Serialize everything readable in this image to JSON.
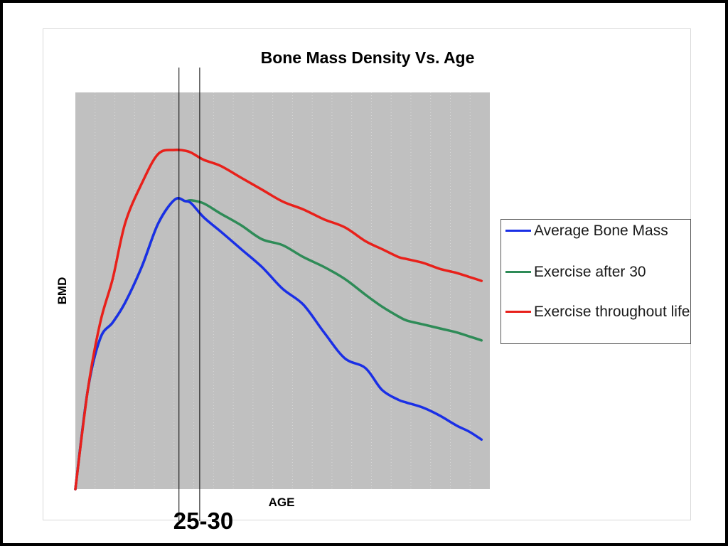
{
  "chart_data": {
    "type": "line",
    "title": "Bone Mass Density Vs. Age",
    "xlabel": "AGE",
    "ylabel": "BMD",
    "x_ticks_shown": false,
    "y_ticks_shown": false,
    "xlim": [
      0,
      100
    ],
    "ylim": [
      0,
      100
    ],
    "grid": "vertical dotted",
    "plot_background": "#c0c0c0",
    "legend_position": "right",
    "series": [
      {
        "name": "Average Bone Mass",
        "color": "#1a2fe6",
        "x": [
          0,
          3,
          6,
          9,
          12,
          16,
          20,
          24,
          26.5,
          28,
          31,
          35,
          40,
          45,
          50,
          55,
          60,
          65,
          70,
          74,
          78,
          80,
          84,
          88,
          92,
          95,
          98
        ],
        "y": [
          0,
          25,
          38,
          42,
          47,
          56,
          67,
          73,
          72.6,
          72,
          68.5,
          65,
          60.5,
          56,
          50.5,
          46.5,
          39.5,
          33,
          30.5,
          25,
          22.5,
          21.8,
          20.5,
          18.5,
          16,
          14.5,
          12.5
        ]
      },
      {
        "name": "Exercise after 30",
        "color": "#2e8b57",
        "x": [
          0,
          3,
          6,
          9,
          12,
          16,
          20,
          24,
          26.5,
          28,
          31,
          35,
          40,
          45,
          50,
          55,
          60,
          65,
          70,
          74,
          78,
          80,
          84,
          88,
          92,
          95,
          98
        ],
        "y": [
          0,
          25,
          38,
          42,
          47,
          56,
          67,
          73,
          72.6,
          72.8,
          72,
          69.5,
          66.5,
          63,
          61.5,
          58.5,
          56,
          53,
          49,
          46,
          43.5,
          42.5,
          41.5,
          40.5,
          39.5,
          38.5,
          37.5
        ]
      },
      {
        "name": "Exercise throughout life",
        "color": "#e8201a",
        "x": [
          0,
          3,
          6,
          9,
          12,
          16,
          20,
          24,
          26.5,
          28,
          31,
          35,
          40,
          45,
          50,
          55,
          60,
          65,
          70,
          74,
          78,
          80,
          84,
          88,
          92,
          95,
          98
        ],
        "y": [
          0,
          25,
          42,
          53,
          67,
          77,
          84.5,
          85.5,
          85.3,
          84.8,
          83,
          81.5,
          78.5,
          75.5,
          72.5,
          70.5,
          68,
          66,
          62.5,
          60.5,
          58.5,
          58,
          57,
          55.5,
          54.5,
          53.5,
          52.5
        ]
      }
    ],
    "annotations": {
      "range_label": "25-30",
      "markers_x": [
        25,
        30
      ]
    }
  }
}
